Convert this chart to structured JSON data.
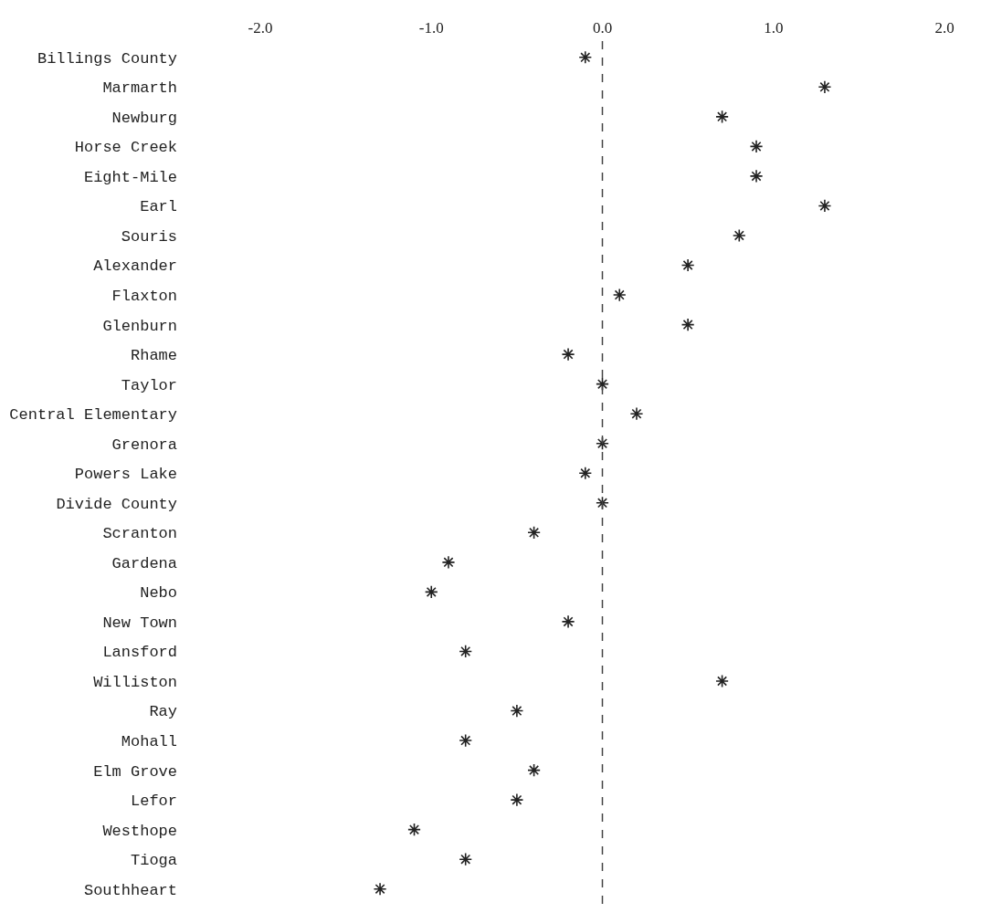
{
  "chart_data": {
    "type": "scatter",
    "orientation": "horizontal",
    "categories": [
      "Billings County",
      "Marmarth",
      "Newburg",
      "Horse Creek",
      "Eight-Mile",
      "Earl",
      "Souris",
      "Alexander",
      "Flaxton",
      "Glenburn",
      "Rhame",
      "Taylor",
      "Central Elementary",
      "Grenora",
      "Powers Lake",
      "Divide County",
      "Scranton",
      "Gardena",
      "Nebo",
      "New Town",
      "Lansford",
      "Williston",
      "Ray",
      "Mohall",
      "Elm Grove",
      "Lefor",
      "Westhope",
      "Tioga",
      "Southheart"
    ],
    "values": [
      -0.1,
      1.3,
      0.7,
      0.9,
      0.9,
      1.3,
      0.8,
      0.5,
      0.1,
      0.5,
      -0.2,
      0.0,
      0.2,
      0.0,
      -0.1,
      0.0,
      -0.4,
      -0.9,
      -1.0,
      -0.2,
      -0.8,
      0.7,
      -0.5,
      -0.8,
      -0.4,
      -0.5,
      -1.1,
      -0.8,
      -1.3
    ],
    "color": "#222222",
    "marker": "cross",
    "xlim": [
      -2.0,
      2.0
    ],
    "xticks": [
      {
        "value": -2,
        "label": "-2.0"
      },
      {
        "value": -1,
        "label": "-1.0"
      },
      {
        "value": 0,
        "label": "0.0"
      },
      {
        "value": 1,
        "label": "1.0"
      },
      {
        "value": 2,
        "label": "2.0"
      }
    ],
    "ref_lines": [
      {
        "axis": "x",
        "value": 0,
        "color": "#444444",
        "line_style": "dashed"
      }
    ]
  }
}
